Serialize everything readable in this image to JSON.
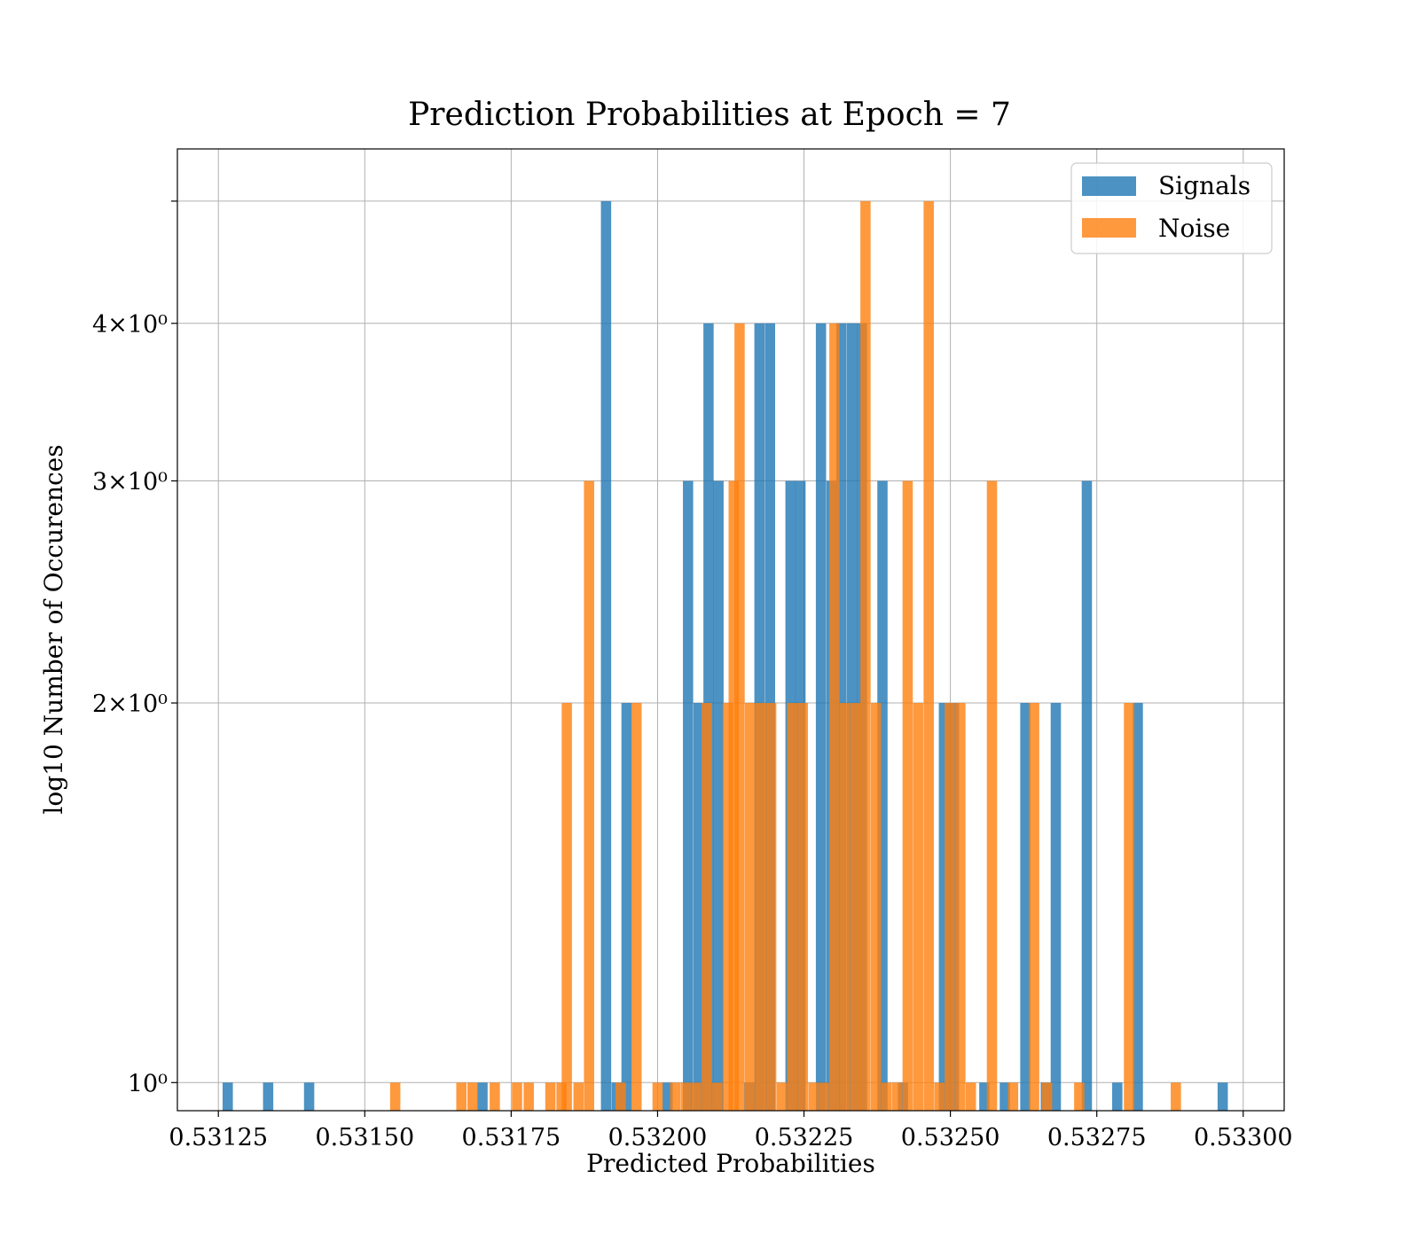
{
  "chart_data": {
    "type": "bar",
    "title": "Prediction Probabilities at Epoch = 7",
    "xlabel": "Predicted Probabilities",
    "ylabel": "log10 Number of Occurences",
    "xlim": [
      0.53118,
      0.53307
    ],
    "ylim": [
      0.95,
      5.5
    ],
    "y_scale": "log",
    "grid": true,
    "legend_position": "top-right",
    "x_ticks": [
      "0.53125",
      "0.53150",
      "0.53175",
      "0.53200",
      "0.53225",
      "0.53250",
      "0.53275",
      "0.53300"
    ],
    "x_tick_values": [
      0.53125,
      0.5315,
      0.53175,
      0.532,
      0.53225,
      0.5325,
      0.53275,
      0.533
    ],
    "y_ticks": [
      {
        "value": 1,
        "label": "10⁰"
      },
      {
        "value": 2,
        "label": "2×10⁰"
      },
      {
        "value": 3,
        "label": "3×10⁰"
      },
      {
        "value": 4,
        "label": "4×10⁰"
      },
      {
        "value": 5,
        "label": ""
      }
    ],
    "bin_width": 1.75e-05,
    "series": [
      {
        "name": "Signals",
        "color": "#1f77b4",
        "bins": [
          [
            0.531266,
            1
          ],
          [
            0.531335,
            1
          ],
          [
            0.531405,
            1
          ],
          [
            0.531701,
            1
          ],
          [
            0.531912,
            5
          ],
          [
            0.53193,
            1
          ],
          [
            0.531947,
            2
          ],
          [
            0.532017,
            1
          ],
          [
            0.532052,
            3
          ],
          [
            0.53207,
            2
          ],
          [
            0.532087,
            4
          ],
          [
            0.532104,
            3
          ],
          [
            0.532157,
            1
          ],
          [
            0.532174,
            4
          ],
          [
            0.532192,
            4
          ],
          [
            0.532227,
            3
          ],
          [
            0.532244,
            3
          ],
          [
            0.532279,
            4
          ],
          [
            0.532297,
            3
          ],
          [
            0.532314,
            4
          ],
          [
            0.532332,
            4
          ],
          [
            0.532349,
            4
          ],
          [
            0.532384,
            3
          ],
          [
            0.532419,
            1
          ],
          [
            0.532489,
            2
          ],
          [
            0.532506,
            2
          ],
          [
            0.532558,
            1
          ],
          [
            0.532593,
            1
          ],
          [
            0.532628,
            2
          ],
          [
            0.532663,
            1
          ],
          [
            0.53268,
            2
          ],
          [
            0.532733,
            3
          ],
          [
            0.532785,
            1
          ],
          [
            0.53282,
            2
          ],
          [
            0.532965,
            1
          ]
        ]
      },
      {
        "name": "Noise",
        "color": "#ff7f0e",
        "bins": [
          [
            0.531552,
            1
          ],
          [
            0.531665,
            1
          ],
          [
            0.531684,
            1
          ],
          [
            0.531722,
            1
          ],
          [
            0.53176,
            1
          ],
          [
            0.53178,
            1
          ],
          [
            0.531817,
            1
          ],
          [
            0.531836,
            1
          ],
          [
            0.531845,
            2
          ],
          [
            0.531865,
            1
          ],
          [
            0.531883,
            3
          ],
          [
            0.531937,
            1
          ],
          [
            0.531964,
            2
          ],
          [
            0.532,
            1
          ],
          [
            0.53203,
            1
          ],
          [
            0.532048,
            1
          ],
          [
            0.532066,
            1
          ],
          [
            0.532084,
            2
          ],
          [
            0.532102,
            1
          ],
          [
            0.53212,
            2
          ],
          [
            0.53213,
            3
          ],
          [
            0.53214,
            4
          ],
          [
            0.532158,
            2
          ],
          [
            0.532176,
            2
          ],
          [
            0.532194,
            2
          ],
          [
            0.532212,
            1
          ],
          [
            0.53223,
            2
          ],
          [
            0.532248,
            2
          ],
          [
            0.532266,
            1
          ],
          [
            0.532284,
            1
          ],
          [
            0.532302,
            4
          ],
          [
            0.53232,
            2
          ],
          [
            0.532338,
            2
          ],
          [
            0.532355,
            5
          ],
          [
            0.532373,
            2
          ],
          [
            0.532391,
            1
          ],
          [
            0.532409,
            1
          ],
          [
            0.532427,
            3
          ],
          [
            0.532445,
            2
          ],
          [
            0.532463,
            5
          ],
          [
            0.532481,
            1
          ],
          [
            0.532499,
            2
          ],
          [
            0.532517,
            2
          ],
          [
            0.532535,
            1
          ],
          [
            0.532571,
            3
          ],
          [
            0.532607,
            1
          ],
          [
            0.532643,
            2
          ],
          [
            0.532665,
            1
          ],
          [
            0.53272,
            1
          ],
          [
            0.532805,
            2
          ],
          [
            0.532885,
            1
          ]
        ]
      }
    ]
  }
}
